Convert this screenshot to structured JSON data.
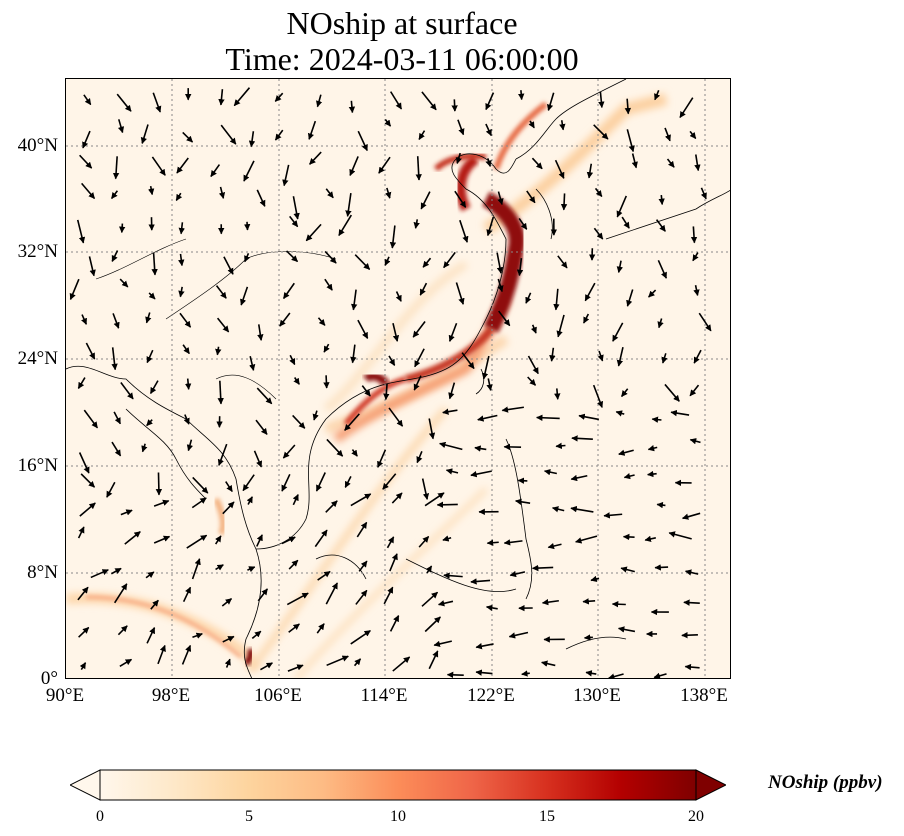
{
  "title_line1": "NOship at surface",
  "title_line2": "Time: 2024-03-11 06:00:00",
  "lat_labels": [
    "40°N",
    "32°N",
    "24°N",
    "16°N",
    "8°N",
    "0°"
  ],
  "lon_labels": [
    "90°E",
    "98°E",
    "106°E",
    "114°E",
    "122°E",
    "130°E",
    "138°E"
  ],
  "colorbar": {
    "label": "NOship (ppbv)",
    "ticks": [
      "0",
      "5",
      "10",
      "15",
      "20"
    ],
    "min": 0,
    "max": 20,
    "colormap": "OrRd",
    "extend": "both",
    "colors": [
      "#fff7ec",
      "#fee8c8",
      "#fdd49e",
      "#fdbb84",
      "#fc8d59",
      "#ef6548",
      "#d7301f",
      "#b30000",
      "#7f0000"
    ]
  },
  "map": {
    "projection": "PlateCarree",
    "lon_range": [
      90,
      140
    ],
    "lat_range": [
      0,
      45
    ],
    "gridlines": "dotted gray",
    "vectors": "surface wind arrows",
    "highlights": [
      "Bohai Sea / Yellow Sea shipping lane (high)",
      "China east coast (high)",
      "Pearl River Delta (high)",
      "Singapore Strait (high)"
    ]
  }
}
